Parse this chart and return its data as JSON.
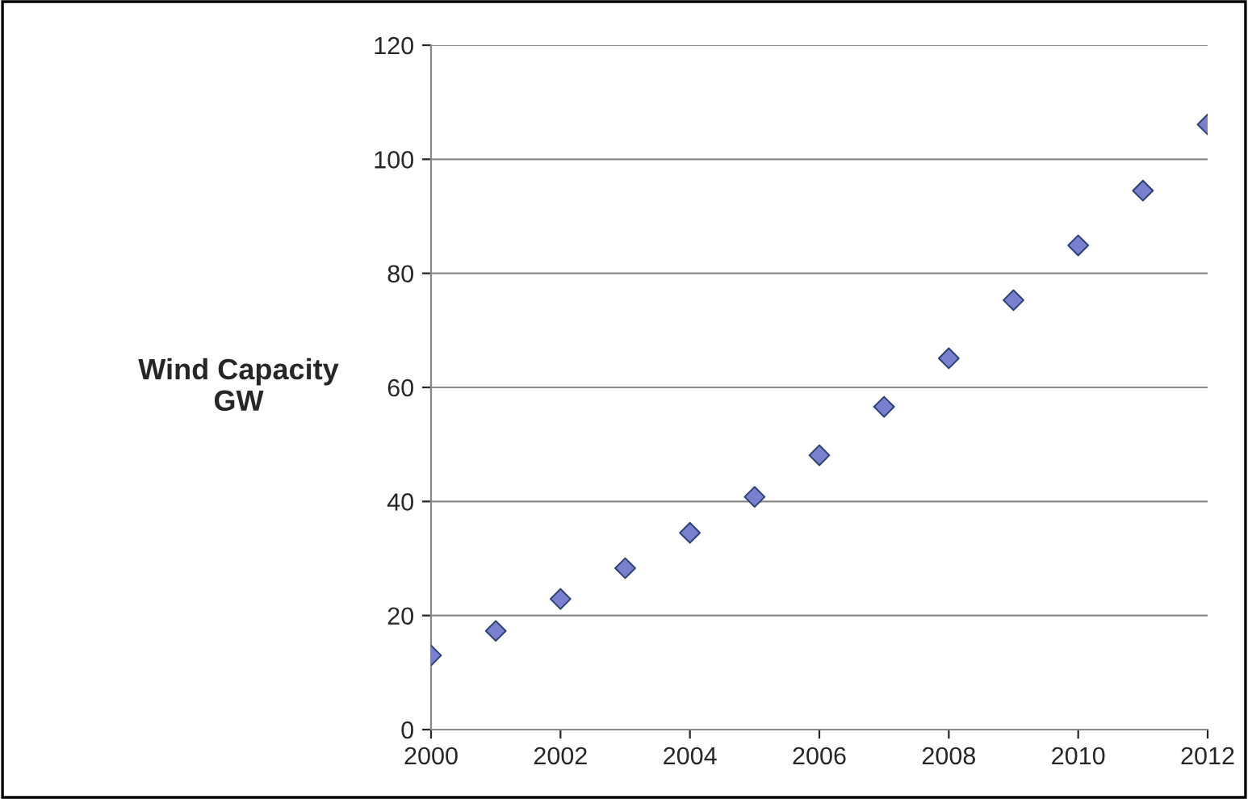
{
  "chart_data": {
    "type": "scatter",
    "ylabel": "Wind Capacity\nGW",
    "x": [
      2000,
      2001,
      2002,
      2003,
      2004,
      2005,
      2006,
      2007,
      2008,
      2009,
      2010,
      2011,
      2012
    ],
    "values": [
      13.0,
      17.3,
      22.9,
      28.3,
      34.5,
      40.8,
      48.1,
      56.6,
      65.1,
      75.3,
      84.9,
      94.5,
      106.1
    ],
    "color": "#7b7fcf",
    "marker": "diamond",
    "xlim": [
      2000,
      2012
    ],
    "xticks": [
      2000,
      2002,
      2004,
      2006,
      2008,
      2010,
      2012
    ],
    "ylim": [
      0,
      120
    ],
    "yticks": [
      0,
      20,
      40,
      60,
      80,
      100,
      120
    ],
    "grid": "y"
  }
}
